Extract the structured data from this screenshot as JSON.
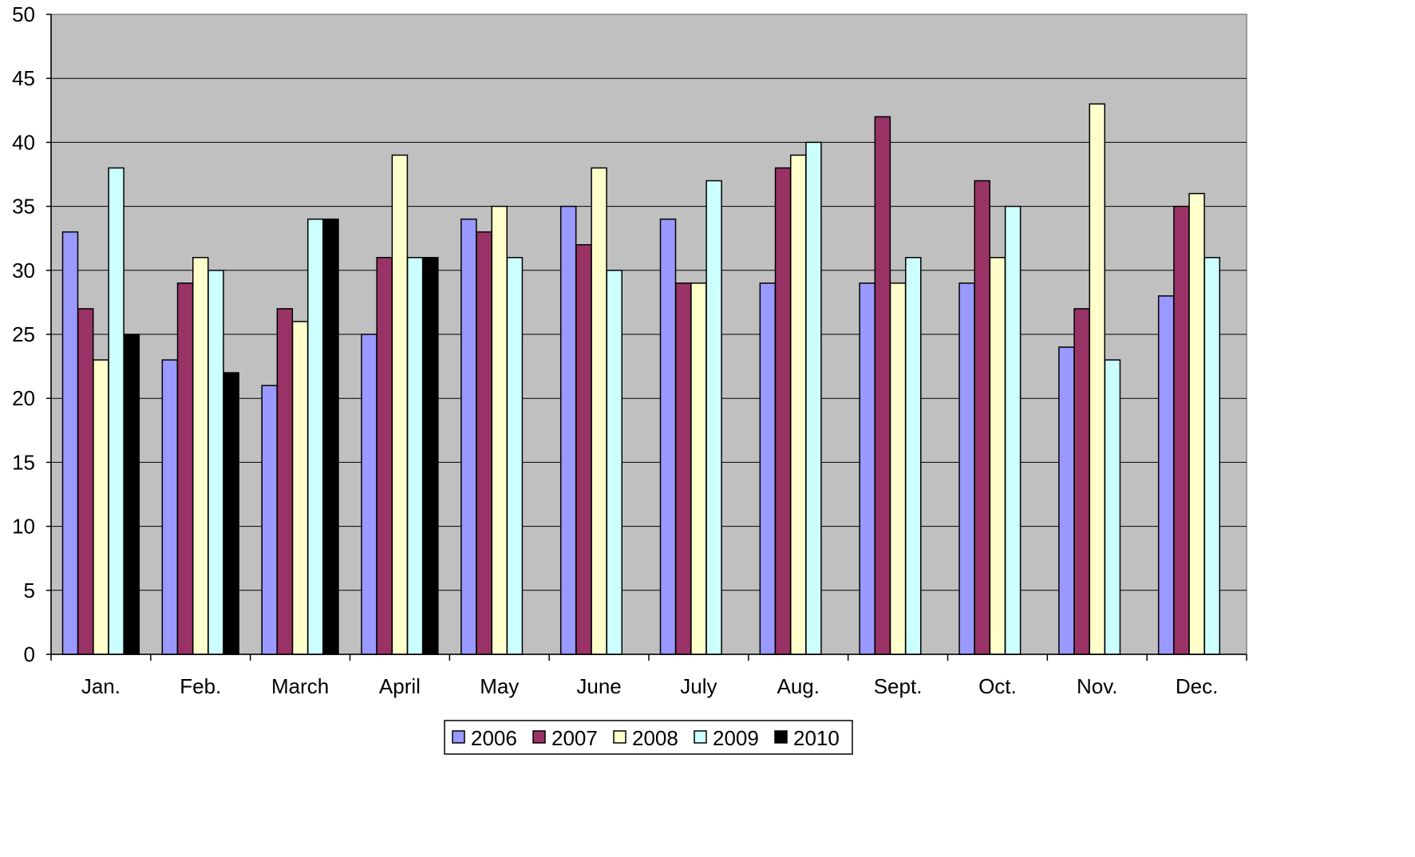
{
  "chart_data": {
    "type": "bar",
    "title": "",
    "xlabel": "",
    "ylabel": "",
    "ylim": [
      0,
      50
    ],
    "yticks": [
      0,
      5,
      10,
      15,
      20,
      25,
      30,
      35,
      40,
      45,
      50
    ],
    "grid": true,
    "legend_position": "bottom",
    "plot_background": "#C0C0C0",
    "categories": [
      "Jan.",
      "Feb.",
      "March",
      "April",
      "May",
      "June",
      "July",
      "Aug.",
      "Sept.",
      "Oct.",
      "Nov.",
      "Dec."
    ],
    "series": [
      {
        "name": "2006",
        "color": "#9999FF",
        "values": [
          33,
          23,
          21,
          25,
          34,
          35,
          34,
          29,
          29,
          29,
          24,
          28
        ]
      },
      {
        "name": "2007",
        "color": "#993366",
        "values": [
          27,
          29,
          27,
          31,
          33,
          32,
          29,
          38,
          42,
          37,
          27,
          35
        ]
      },
      {
        "name": "2008",
        "color": "#FFFFCC",
        "values": [
          23,
          31,
          26,
          39,
          35,
          38,
          29,
          39,
          29,
          31,
          43,
          36
        ]
      },
      {
        "name": "2009",
        "color": "#CCFFFF",
        "values": [
          38,
          30,
          34,
          31,
          31,
          30,
          37,
          40,
          31,
          35,
          23,
          31
        ]
      },
      {
        "name": "2010",
        "color": "#000000",
        "values": [
          25,
          22,
          34,
          31,
          null,
          null,
          null,
          null,
          null,
          null,
          null,
          null
        ]
      }
    ]
  }
}
